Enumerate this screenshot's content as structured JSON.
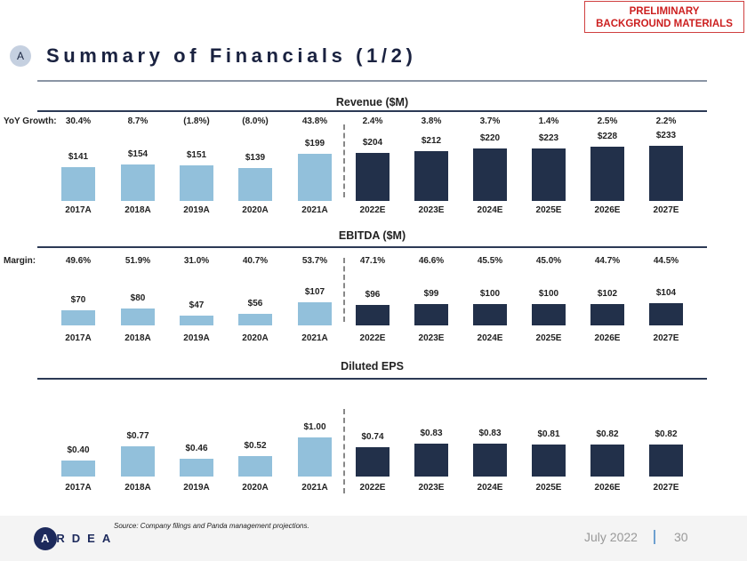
{
  "header": {
    "stamp_line1": "PRELIMINARY",
    "stamp_line2": "BACKGROUND MATERIALS",
    "section_badge": "A",
    "title": "Summary of Financials (1/2)"
  },
  "colors": {
    "actual": "#92C0DB",
    "estimate": "#22304A"
  },
  "chart_data": [
    {
      "type": "bar",
      "title": "Revenue ($M)",
      "row_label": "YoY Growth:",
      "categories": [
        "2017A",
        "2018A",
        "2019A",
        "2020A",
        "2021A",
        "2022E",
        "2023E",
        "2024E",
        "2025E",
        "2026E",
        "2027E"
      ],
      "row_values": [
        "30.4%",
        "8.7%",
        "(1.8%)",
        "(8.0%)",
        "43.8%",
        "2.4%",
        "3.8%",
        "3.7%",
        "1.4%",
        "2.5%",
        "2.2%"
      ],
      "values": [
        141,
        154,
        151,
        139,
        199,
        204,
        212,
        220,
        223,
        228,
        233
      ],
      "labels": [
        "$141",
        "$154",
        "$151",
        "$139",
        "$199",
        "$204",
        "$212",
        "$220",
        "$223",
        "$228",
        "$233"
      ]
    },
    {
      "type": "bar",
      "title": "EBITDA ($M)",
      "row_label": "Margin:",
      "categories": [
        "2017A",
        "2018A",
        "2019A",
        "2020A",
        "2021A",
        "2022E",
        "2023E",
        "2024E",
        "2025E",
        "2026E",
        "2027E"
      ],
      "row_values": [
        "49.6%",
        "51.9%",
        "31.0%",
        "40.7%",
        "53.7%",
        "47.1%",
        "46.6%",
        "45.5%",
        "45.0%",
        "44.7%",
        "44.5%"
      ],
      "values": [
        70,
        80,
        47,
        56,
        107,
        96,
        99,
        100,
        100,
        102,
        104
      ],
      "labels": [
        "$70",
        "$80",
        "$47",
        "$56",
        "$107",
        "$96",
        "$99",
        "$100",
        "$100",
        "$102",
        "$104"
      ]
    },
    {
      "type": "bar",
      "title": "Diluted EPS",
      "row_label": "",
      "categories": [
        "2017A",
        "2018A",
        "2019A",
        "2020A",
        "2021A",
        "2022E",
        "2023E",
        "2024E",
        "2025E",
        "2026E",
        "2027E"
      ],
      "row_values": [],
      "values": [
        0.4,
        0.77,
        0.46,
        0.52,
        1.0,
        0.74,
        0.83,
        0.83,
        0.81,
        0.82,
        0.82
      ],
      "labels": [
        "$0.40",
        "$0.77",
        "$0.46",
        "$0.52",
        "$1.00",
        "$0.74",
        "$0.83",
        "$0.83",
        "$0.81",
        "$0.82",
        "$0.82"
      ]
    }
  ],
  "footer": {
    "source": "Source: Company filings and Panda management projections.",
    "logo_first": "A",
    "logo_rest": "RDEA",
    "date": "July 2022",
    "page": "30"
  }
}
